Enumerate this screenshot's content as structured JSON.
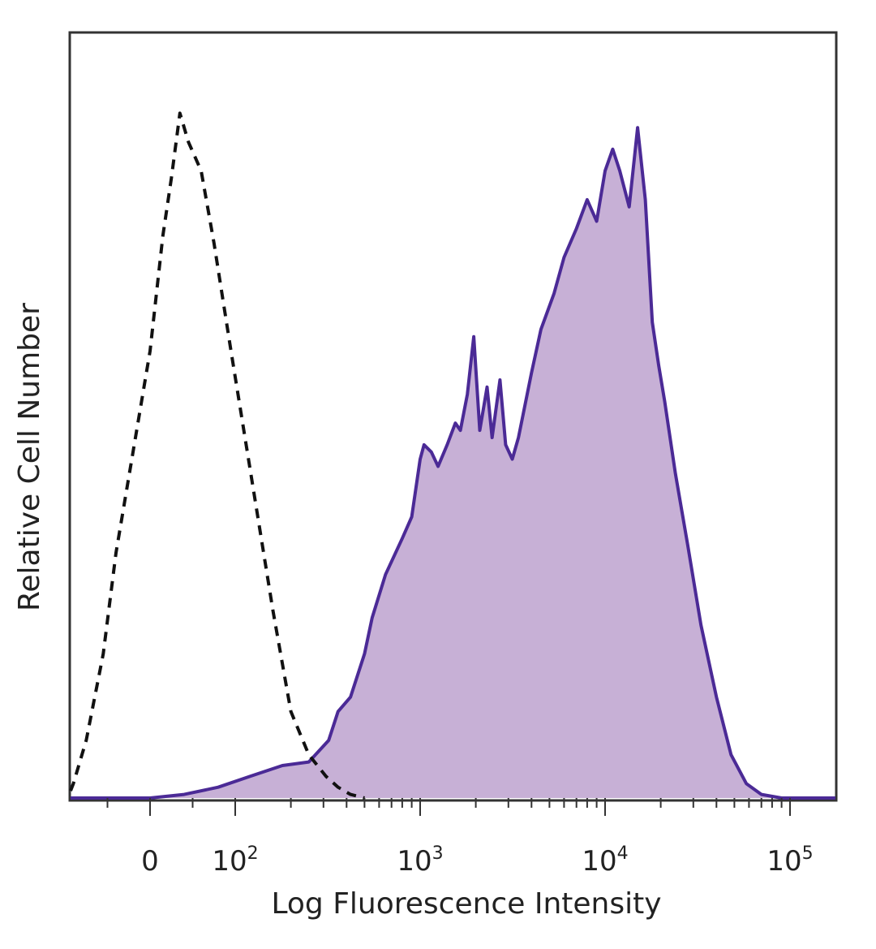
{
  "chart_data": {
    "type": "area",
    "title": "",
    "xlabel": "Log Fluorescence Intensity",
    "ylabel": "Relative Cell Number",
    "x_scale": "biexponential",
    "xlim": [
      -100,
      200000
    ],
    "ylim": [
      0,
      100
    ],
    "grid": false,
    "legend": "none",
    "colors": {
      "stained_fill": "#c7b0d6",
      "stained_line": "#4b2a96",
      "control_line": "#111111",
      "frame": "#333333"
    },
    "tick_labels": [
      {
        "value": 0,
        "base": "0",
        "exp": ""
      },
      {
        "value": 100,
        "base": "10",
        "exp": "2"
      },
      {
        "value": 1000,
        "base": "10",
        "exp": "3"
      },
      {
        "value": 10000,
        "base": "10",
        "exp": "4"
      },
      {
        "value": 100000,
        "base": "10",
        "exp": "5"
      }
    ],
    "series": [
      {
        "style": "dashed-outline",
        "x": [
          -100,
          -90,
          -75,
          -55,
          -40,
          -20,
          0,
          15,
          25,
          35,
          45,
          60,
          75,
          95,
          125,
          160,
          200,
          250,
          310,
          360,
          420,
          500
        ],
        "y": [
          1,
          2,
          8,
          20,
          34,
          48,
          62,
          78,
          86,
          95,
          91,
          87,
          77,
          62,
          43,
          26,
          12,
          6,
          3,
          1.5,
          0.5,
          0
        ]
      },
      {
        "style": "filled",
        "x": [
          -100,
          0,
          40,
          80,
          120,
          180,
          250,
          320,
          360,
          420,
          500,
          550,
          650,
          800,
          900,
          1000,
          1050,
          1150,
          1250,
          1400,
          1550,
          1650,
          1800,
          1950,
          2100,
          2300,
          2450,
          2700,
          2900,
          3150,
          3400,
          4000,
          4500,
          5300,
          6000,
          7000,
          8000,
          9000,
          10000,
          11000,
          12000,
          13500,
          15000,
          16500,
          18000,
          19500,
          21000,
          24000,
          28000,
          33000,
          40000,
          48000,
          58000,
          70000,
          90000,
          120000,
          200000
        ],
        "y": [
          0,
          0,
          0.5,
          1.5,
          3,
          4.5,
          5,
          8,
          12,
          14,
          20,
          25,
          31,
          36,
          39,
          47,
          49,
          48,
          46,
          49,
          52,
          51,
          56,
          64,
          51,
          57,
          50,
          58,
          49,
          47,
          50,
          59,
          65,
          70,
          75,
          79,
          83,
          80,
          87,
          90,
          87,
          82,
          93,
          83,
          66,
          60,
          55,
          45,
          35,
          24,
          14,
          6,
          2,
          0.5,
          0,
          0,
          0
        ]
      }
    ]
  }
}
